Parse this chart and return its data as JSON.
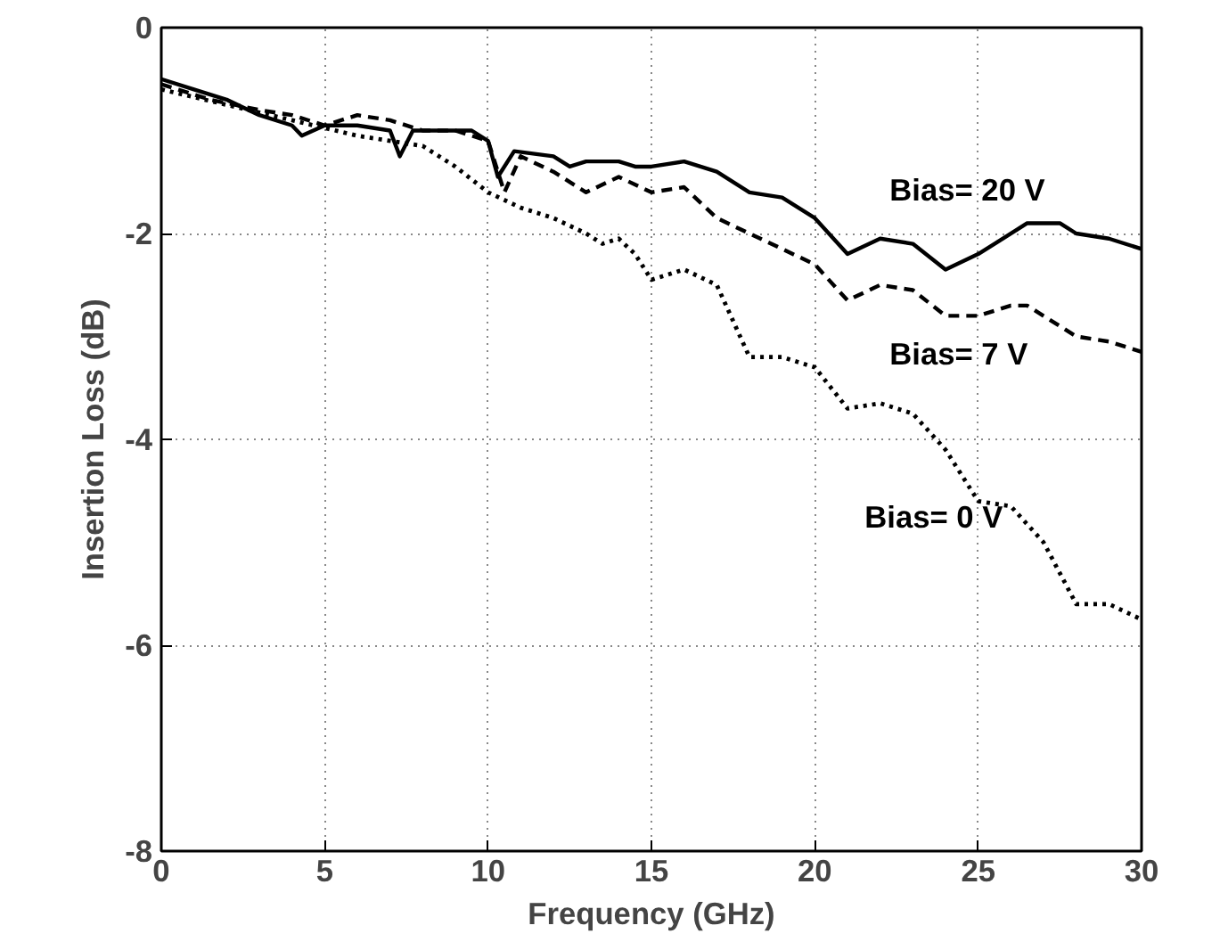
{
  "chart_data": {
    "type": "line",
    "xlabel": "Frequency (GHz)",
    "ylabel": "Insertion Loss (dB)",
    "xlim": [
      0,
      30
    ],
    "xticks": [
      0,
      5,
      10,
      15,
      20,
      25,
      30
    ],
    "ylim": [
      -8,
      0
    ],
    "yticks": [
      -8,
      -6,
      -4,
      -2,
      0
    ],
    "grid": true,
    "marker": "none",
    "series": [
      {
        "name": "Bias= 20 V",
        "color": "#000000",
        "line_style": "solid",
        "x": [
          0,
          1,
          2,
          3,
          4,
          4.3,
          5,
          6,
          7,
          7.3,
          7.7,
          8.5,
          9.5,
          10,
          10.3,
          10.8,
          12,
          12.5,
          13,
          14,
          14.5,
          15,
          16,
          17,
          18,
          19,
          20,
          21,
          22,
          23,
          24,
          25,
          25.5,
          26.5,
          27.5,
          28,
          29,
          30
        ],
        "values": [
          -0.5,
          -0.6,
          -0.7,
          -0.85,
          -0.95,
          -1.05,
          -0.95,
          -0.95,
          -1.0,
          -1.25,
          -1.0,
          -1.0,
          -1.0,
          -1.1,
          -1.45,
          -1.2,
          -1.25,
          -1.35,
          -1.3,
          -1.3,
          -1.35,
          -1.35,
          -1.3,
          -1.4,
          -1.6,
          -1.65,
          -1.85,
          -2.2,
          -2.05,
          -2.1,
          -2.35,
          -2.2,
          -2.1,
          -1.9,
          -1.9,
          -2.0,
          -2.05,
          -2.15
        ]
      },
      {
        "name": "Bias= 7 V",
        "color": "#000000",
        "line_style": "dashed",
        "x": [
          0,
          1.5,
          3,
          4,
          5,
          6,
          7,
          8,
          9,
          10,
          10.5,
          11,
          12,
          13,
          14,
          15,
          16,
          17,
          18,
          19,
          20,
          21,
          22,
          23,
          24,
          25,
          26,
          26.5,
          28,
          29,
          30
        ],
        "values": [
          -0.55,
          -0.7,
          -0.8,
          -0.85,
          -0.95,
          -0.85,
          -0.9,
          -1.0,
          -1.0,
          -1.1,
          -1.6,
          -1.25,
          -1.4,
          -1.6,
          -1.45,
          -1.6,
          -1.55,
          -1.85,
          -2.0,
          -2.15,
          -2.3,
          -2.65,
          -2.5,
          -2.55,
          -2.8,
          -2.8,
          -2.7,
          -2.7,
          -3.0,
          -3.05,
          -3.15
        ]
      },
      {
        "name": "Bias= 0 V",
        "color": "#000000",
        "line_style": "dotted",
        "x": [
          0,
          2,
          4,
          6,
          8,
          9,
          10,
          11,
          12,
          13,
          13.5,
          14,
          14.5,
          15,
          16,
          17,
          18,
          19,
          20,
          21,
          22,
          23,
          24,
          25,
          26,
          27,
          28,
          29,
          30
        ],
        "values": [
          -0.6,
          -0.75,
          -0.9,
          -1.05,
          -1.15,
          -1.35,
          -1.6,
          -1.75,
          -1.85,
          -2.0,
          -2.1,
          -2.05,
          -2.2,
          -2.45,
          -2.35,
          -2.5,
          -3.2,
          -3.2,
          -3.3,
          -3.7,
          -3.65,
          -3.75,
          -4.1,
          -4.6,
          -4.65,
          -5.0,
          -5.6,
          -5.6,
          -5.75
        ]
      }
    ]
  }
}
